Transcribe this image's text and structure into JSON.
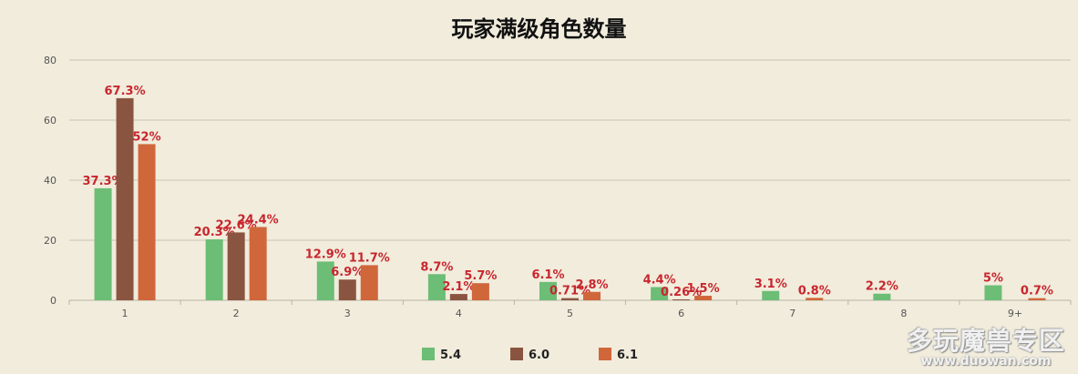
{
  "watermark": {
    "main": "多玩魔兽专区",
    "url": "www.duowan.com"
  },
  "colors": {
    "series": [
      "#6cbd76",
      "#8a5540",
      "#d0673b"
    ],
    "grid": "#c9c4b2",
    "label": "#c8262e"
  },
  "chart_data": {
    "type": "bar",
    "title": "玩家满级角色数量",
    "xlabel": "",
    "ylabel": "",
    "ylim": [
      0,
      80
    ],
    "yticks": [
      0,
      20,
      40,
      60,
      80
    ],
    "grid": true,
    "legend_position": "bottom",
    "categories": [
      "1",
      "2",
      "3",
      "4",
      "5",
      "6",
      "7",
      "8",
      "9+"
    ],
    "series": [
      {
        "name": "5.4",
        "values": [
          37.3,
          20.3,
          12.9,
          8.7,
          6.1,
          4.4,
          3.1,
          2.2,
          5
        ],
        "labels": [
          "37.3%",
          "20.3%",
          "12.9%",
          "8.7%",
          "6.1%",
          "4.4%",
          "3.1%",
          "2.2%",
          "5%"
        ]
      },
      {
        "name": "6.0",
        "values": [
          67.3,
          22.6,
          6.9,
          2.1,
          0.71,
          0.26,
          null,
          null,
          null
        ],
        "labels": [
          "67.3%",
          "22.6%",
          "6.9%",
          "2.1%",
          "0.71%",
          "0.26%",
          null,
          null,
          null
        ]
      },
      {
        "name": "6.1",
        "values": [
          52,
          24.4,
          11.7,
          5.7,
          2.8,
          1.5,
          0.8,
          null,
          0.7
        ],
        "labels": [
          "52%",
          "24.4%",
          "11.7%",
          "5.7%",
          "2.8%",
          "1.5%",
          "0.8%",
          null,
          "0.7%"
        ]
      }
    ]
  }
}
